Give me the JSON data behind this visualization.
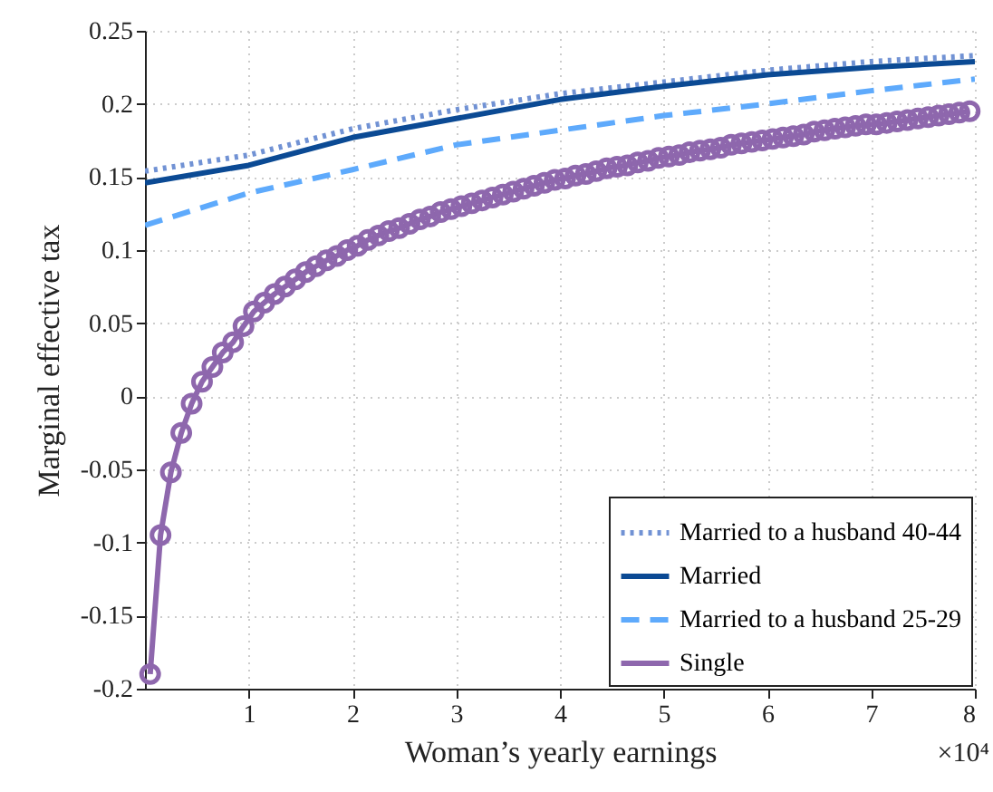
{
  "chart_data": {
    "type": "line",
    "xlabel": "Woman’s yearly earnings",
    "ylabel": "Marginal effective tax",
    "annotations": [
      "×10⁴"
    ],
    "xlim": [
      0,
      8
    ],
    "xticks": [
      1,
      2,
      3,
      4,
      5,
      6,
      7,
      8
    ],
    "ylim": [
      -0.2,
      0.25
    ],
    "yticks": [
      -0.2,
      -0.15,
      -0.1,
      -0.05,
      0,
      0.05,
      0.1,
      0.15,
      0.2,
      0.25
    ],
    "grid": true,
    "legend": "bottom right",
    "marker": "none",
    "series": [
      {
        "name": "Married to a husband 40-44",
        "color": "#7192d4",
        "line_style": "dotted",
        "x": [
          0,
          1,
          2,
          3,
          4,
          5,
          6,
          7,
          8
        ],
        "values": [
          0.154,
          0.165,
          0.183,
          0.196,
          0.207,
          0.215,
          0.223,
          0.229,
          0.233
        ]
      },
      {
        "name": "Married",
        "color": "#0b4a94",
        "line_style": "solid",
        "x": [
          0,
          1,
          2,
          3,
          4,
          5,
          6,
          7,
          8
        ],
        "values": [
          0.146,
          0.158,
          0.177,
          0.19,
          0.203,
          0.212,
          0.22,
          0.225,
          0.229
        ]
      },
      {
        "name": "Married to a husband 25-29",
        "color": "#5eaafc",
        "line_style": "dashed",
        "x": [
          0,
          1,
          2,
          3,
          4,
          5,
          6,
          7,
          8
        ],
        "values": [
          0.117,
          0.139,
          0.155,
          0.172,
          0.182,
          0.192,
          0.2,
          0.209,
          0.217
        ]
      },
      {
        "name": "Single",
        "color": "#8e67ad",
        "line_style": "solid",
        "marker": "circle",
        "x": [
          0.05,
          0.15,
          0.25,
          0.35,
          0.45,
          0.55,
          0.65,
          0.75,
          0.85,
          0.95,
          1.05,
          1.15,
          1.25,
          1.35,
          1.45,
          1.55,
          1.65,
          1.75,
          1.85,
          1.95,
          2.05,
          2.15,
          2.25,
          2.35,
          2.45,
          2.55,
          2.65,
          2.75,
          2.85,
          2.95,
          3.05,
          3.15,
          3.25,
          3.35,
          3.45,
          3.55,
          3.65,
          3.75,
          3.85,
          3.95,
          4.05,
          4.15,
          4.25,
          4.35,
          4.45,
          4.55,
          4.65,
          4.75,
          4.85,
          4.95,
          5.05,
          5.15,
          5.25,
          5.35,
          5.45,
          5.55,
          5.65,
          5.75,
          5.85,
          5.95,
          6.05,
          6.15,
          6.25,
          6.35,
          6.45,
          6.55,
          6.65,
          6.75,
          6.85,
          6.95,
          7.05,
          7.15,
          7.25,
          7.35,
          7.45,
          7.55,
          7.65,
          7.75,
          7.85,
          7.95
        ],
        "values": [
          -0.19,
          -0.095,
          -0.052,
          -0.025,
          -0.005,
          0.01,
          0.02,
          0.03,
          0.037,
          0.048,
          0.058,
          0.064,
          0.07,
          0.075,
          0.08,
          0.085,
          0.089,
          0.093,
          0.096,
          0.1,
          0.103,
          0.107,
          0.11,
          0.113,
          0.115,
          0.118,
          0.121,
          0.123,
          0.126,
          0.128,
          0.13,
          0.132,
          0.134,
          0.136,
          0.138,
          0.14,
          0.142,
          0.144,
          0.146,
          0.148,
          0.149,
          0.151,
          0.152,
          0.154,
          0.156,
          0.157,
          0.158,
          0.16,
          0.161,
          0.163,
          0.164,
          0.165,
          0.167,
          0.168,
          0.169,
          0.17,
          0.172,
          0.173,
          0.174,
          0.175,
          0.176,
          0.177,
          0.178,
          0.179,
          0.181,
          0.182,
          0.183,
          0.184,
          0.185,
          0.186,
          0.186,
          0.187,
          0.188,
          0.189,
          0.19,
          0.191,
          0.192,
          0.193,
          0.194,
          0.195
        ]
      }
    ]
  }
}
